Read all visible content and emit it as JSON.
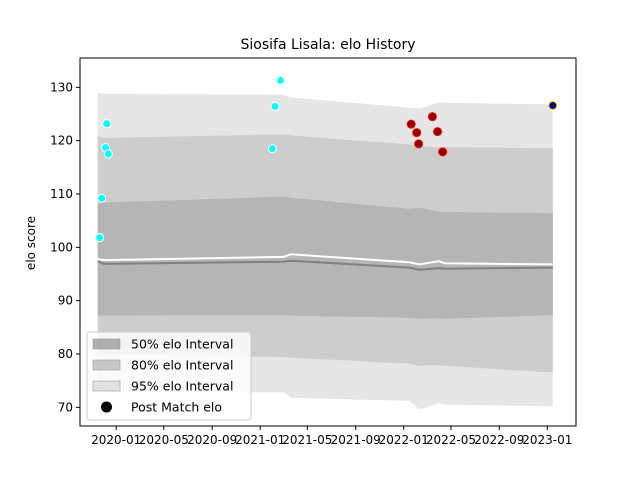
{
  "chart_data": {
    "type": "line",
    "title": "Siosifa Lisala: elo History",
    "xlabel": "",
    "ylabel": "elo score",
    "xlim": [
      "2019-10-01",
      "2023-03-15"
    ],
    "ylim": [
      66.5,
      135.5
    ],
    "x_ticks": [
      "2020-01",
      "2020-05",
      "2020-09",
      "2021-01",
      "2021-05",
      "2021-09",
      "2022-01",
      "2022-05",
      "2022-09",
      "2023-01"
    ],
    "y_ticks": [
      70,
      80,
      90,
      100,
      110,
      120,
      130
    ],
    "grid": false,
    "legend_position": "lower-left",
    "dates": [
      "2019-11-15",
      "2019-12-01",
      "2021-03-01",
      "2021-03-20",
      "2022-01-15",
      "2022-02-10",
      "2022-04-01",
      "2022-04-15",
      "2023-01-15"
    ],
    "median_line": [
      97.4,
      96.9,
      97.3,
      97.5,
      96.2,
      95.8,
      96.1,
      96.0,
      96.2
    ],
    "white_line": [
      97.8,
      97.6,
      98.2,
      98.7,
      97.2,
      96.8,
      97.4,
      97.0,
      96.8
    ],
    "intervals": [
      {
        "name": "50% elo Interval",
        "lower": [
          87.2,
          87.2,
          87.3,
          87.2,
          86.8,
          86.6,
          86.7,
          86.6,
          87.3
        ],
        "upper": [
          108.3,
          108.4,
          109.5,
          109.3,
          107.2,
          107.4,
          106.7,
          106.6,
          106.4
        ]
      },
      {
        "name": "80% elo Interval",
        "lower": [
          79.6,
          80.0,
          79.4,
          79.3,
          78.2,
          77.8,
          77.9,
          77.8,
          76.5
        ],
        "upper": [
          120.8,
          120.5,
          121.2,
          121.0,
          119.3,
          119.0,
          118.8,
          118.8,
          118.6
        ]
      },
      {
        "name": "95% elo Interval",
        "lower": [
          73.4,
          72.8,
          72.8,
          71.8,
          71.2,
          69.6,
          70.8,
          70.5,
          70.2
        ],
        "upper": [
          128.9,
          128.8,
          128.6,
          128.1,
          126.2,
          126.0,
          127.2,
          127.1,
          126.8
        ]
      }
    ],
    "interval_colors": [
      "#b0b0b0",
      "#c8c8c8",
      "#e2e2e2"
    ],
    "series": [
      {
        "name": "Post Match elo",
        "points": [
          {
            "x": "2019-11-20",
            "y": 101.8,
            "color": "#00ffff",
            "edge": "#ffffff"
          },
          {
            "x": "2019-11-25",
            "y": 109.2,
            "color": "#00ffff",
            "edge": "#ffffff"
          },
          {
            "x": "2019-12-05",
            "y": 118.7,
            "color": "#00ffff",
            "edge": "#ffffff"
          },
          {
            "x": "2019-12-08",
            "y": 123.2,
            "color": "#00ffff",
            "edge": "#ffffff"
          },
          {
            "x": "2019-12-12",
            "y": 117.5,
            "color": "#00ffff",
            "edge": "#ffffff"
          },
          {
            "x": "2021-02-01",
            "y": 118.5,
            "color": "#00ffff",
            "edge": "#ffffff"
          },
          {
            "x": "2021-02-08",
            "y": 126.4,
            "color": "#00ffff",
            "edge": "#ffffff"
          },
          {
            "x": "2021-02-22",
            "y": 131.3,
            "color": "#00ffff",
            "edge": "#ffffff"
          },
          {
            "x": "2022-01-20",
            "y": 123.1,
            "color": "#8b0000",
            "edge": "#ff0000"
          },
          {
            "x": "2022-02-03",
            "y": 121.5,
            "color": "#8b0000",
            "edge": "#ff0000"
          },
          {
            "x": "2022-02-08",
            "y": 119.4,
            "color": "#8b0000",
            "edge": "#ff0000"
          },
          {
            "x": "2022-03-15",
            "y": 124.5,
            "color": "#8b0000",
            "edge": "#ff0000"
          },
          {
            "x": "2022-03-28",
            "y": 121.7,
            "color": "#8b0000",
            "edge": "#ff0000"
          },
          {
            "x": "2022-04-10",
            "y": 117.9,
            "color": "#8b0000",
            "edge": "#ff0000"
          },
          {
            "x": "2023-01-15",
            "y": 126.6,
            "color": "#00008b",
            "edge": "#ffd700"
          }
        ]
      }
    ],
    "legend": [
      {
        "label": "50% elo Interval",
        "kind": "patch",
        "color": "#b0b0b0"
      },
      {
        "label": "80% elo Interval",
        "kind": "patch",
        "color": "#c8c8c8"
      },
      {
        "label": "95% elo Interval",
        "kind": "patch",
        "color": "#e2e2e2"
      },
      {
        "label": "Post Match elo",
        "kind": "marker",
        "color": "#000000"
      }
    ]
  }
}
